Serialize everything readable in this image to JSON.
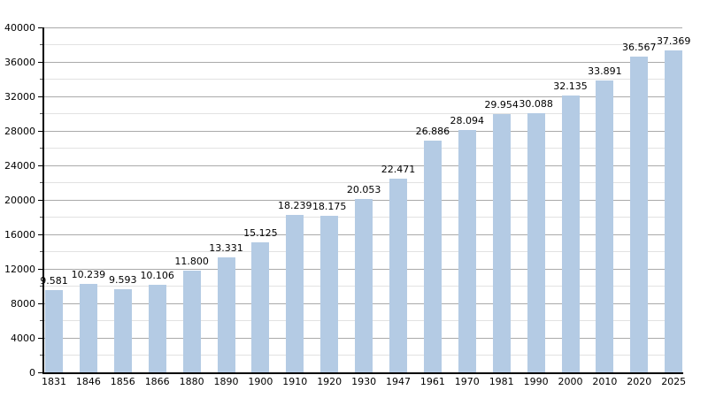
{
  "chart_data": {
    "type": "bar",
    "title": "",
    "xlabel": "",
    "ylabel": "",
    "categories": [
      "1831",
      "1846",
      "1856",
      "1866",
      "1880",
      "1890",
      "1900",
      "1910",
      "1920",
      "1930",
      "1947",
      "1961",
      "1970",
      "1981",
      "1990",
      "2000",
      "2010",
      "2020",
      "2025"
    ],
    "values": [
      9581,
      10239,
      9593,
      10106,
      11800,
      13331,
      15125,
      18239,
      18175,
      20053,
      22471,
      26886,
      28094,
      29954,
      30088,
      32135,
      33891,
      36567,
      37369
    ],
    "value_labels": [
      "9.581",
      "10.239",
      "9.593",
      "10.106",
      "11.800",
      "13.331",
      "15.125",
      "18.239",
      "18.175",
      "20.053",
      "22.471",
      "26.886",
      "28.094",
      "29.954",
      "30.088",
      "32.135",
      "33.891",
      "36.567",
      "37.369"
    ],
    "ylim": [
      0,
      40000
    ],
    "y_major_step": 4000,
    "y_minor_step": 2000,
    "y_tick_labels": [
      "0",
      "4000",
      "8000",
      "12000",
      "16000",
      "20000",
      "24000",
      "28000",
      "32000",
      "36000",
      "40000"
    ],
    "grid": true,
    "legend": false,
    "colors": {
      "bar_fill": "#b4cbe4",
      "major_grid": "#aaaaaa",
      "minor_grid": "#e2e2e2",
      "axis": "#000000",
      "text": "#000000",
      "background": "#ffffff"
    }
  }
}
